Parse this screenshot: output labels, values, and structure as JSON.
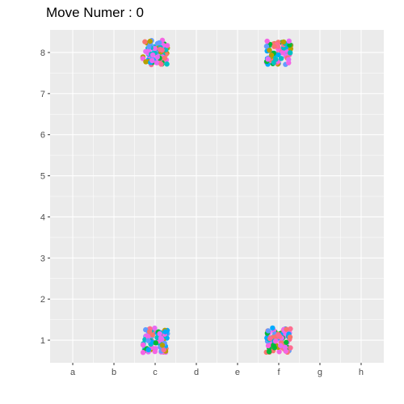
{
  "chart_data": {
    "type": "scatter",
    "title": "Move Numer : 0",
    "xlabel": "",
    "ylabel": "",
    "categories": [
      "a",
      "b",
      "c",
      "d",
      "e",
      "f",
      "g",
      "h"
    ],
    "y_ticks": [
      "1",
      "2",
      "3",
      "4",
      "5",
      "6",
      "7",
      "8"
    ],
    "xlim": [
      0.45,
      8.55
    ],
    "ylim": [
      0.45,
      8.55
    ],
    "grid": true,
    "legend": "none",
    "clusters": [
      {
        "x": "c",
        "y": 8
      },
      {
        "x": "f",
        "y": 8
      },
      {
        "x": "c",
        "y": 1
      },
      {
        "x": "f",
        "y": 1
      }
    ],
    "jitter": 0.3,
    "points_per_cluster": 80,
    "colors": [
      "#F8766D",
      "#00BA38",
      "#619CFF",
      "#00BFC4",
      "#F564E3",
      "#FF6C91",
      "#B79F00",
      "#00A9FF",
      "#E76BF3"
    ],
    "panel_background": "#EBEBEB",
    "grid_color": "#FFFFFF"
  }
}
